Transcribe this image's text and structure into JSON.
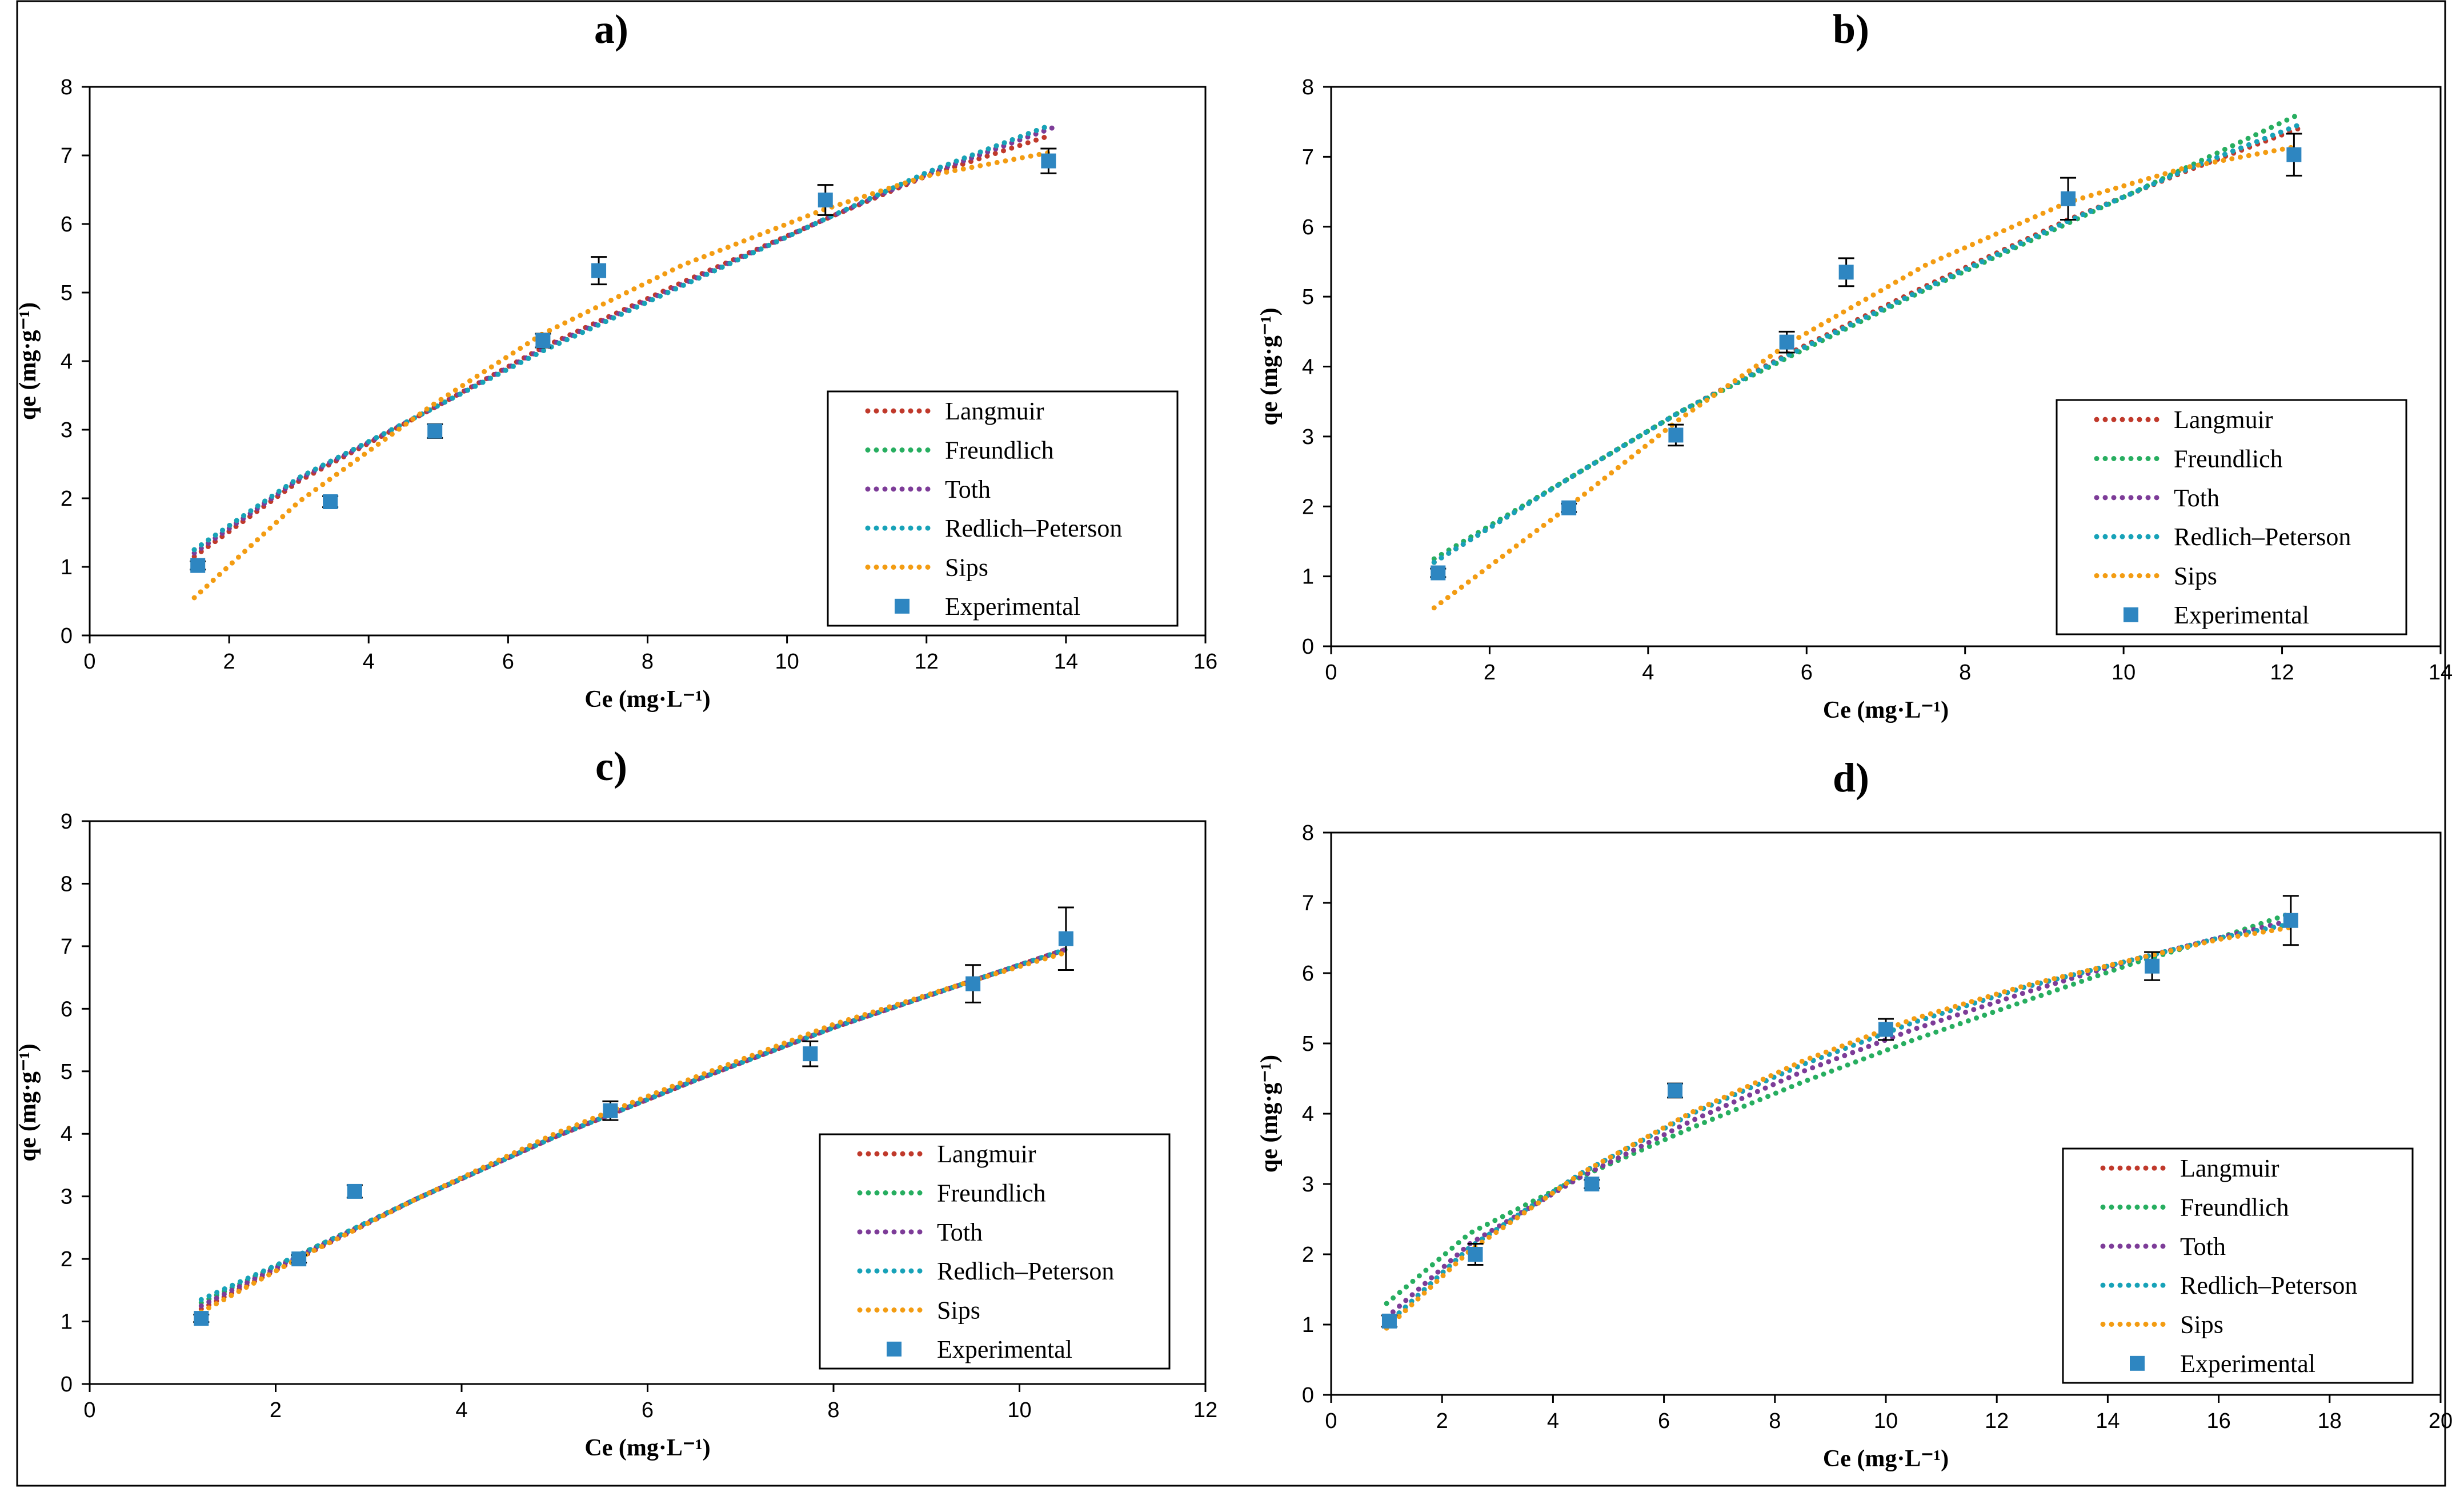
{
  "chart_data": [
    {
      "type": "scatter",
      "title": "a)",
      "xlabel": "Ce (mg·L⁻¹)",
      "ylabel": "qe (mg·g⁻¹)",
      "xlim": [
        0,
        16
      ],
      "ylim": [
        0,
        8
      ],
      "xticks": [
        0,
        2,
        4,
        6,
        8,
        10,
        12,
        14,
        16
      ],
      "yticks": [
        0,
        1,
        2,
        3,
        4,
        5,
        6,
        7,
        8
      ],
      "legend_position": "bottom-right",
      "series": [
        {
          "name": "Langmuir",
          "color": "#c0392b",
          "kind": "dotted-line",
          "x": [
            1.5,
            3.0,
            4.9,
            6.5,
            8.5,
            10.5,
            12.0,
            13.8
          ],
          "y": [
            1.15,
            2.25,
            3.3,
            4.2,
            5.15,
            6.05,
            6.7,
            7.3
          ]
        },
        {
          "name": "Freundlich",
          "color": "#27ae60",
          "kind": "dotted-line",
          "x": [
            1.5,
            3.0,
            4.9,
            6.5,
            8.5,
            10.5,
            12.0,
            13.8
          ],
          "y": [
            1.25,
            2.3,
            3.3,
            4.15,
            5.1,
            6.05,
            6.75,
            7.45
          ]
        },
        {
          "name": "Toth",
          "color": "#7d3c98",
          "kind": "dotted-line",
          "x": [
            1.5,
            3.0,
            4.9,
            6.5,
            8.5,
            10.5,
            12.0,
            13.8
          ],
          "y": [
            1.2,
            2.28,
            3.3,
            4.18,
            5.12,
            6.05,
            6.72,
            7.4
          ]
        },
        {
          "name": "Redlich–Peterson",
          "color": "#17a2b8",
          "kind": "dotted-line",
          "x": [
            1.5,
            3.0,
            4.9,
            6.5,
            8.5,
            10.5,
            12.0,
            13.8
          ],
          "y": [
            1.25,
            2.3,
            3.3,
            4.15,
            5.1,
            6.05,
            6.75,
            7.45
          ]
        },
        {
          "name": "Sips",
          "color": "#f39c12",
          "kind": "dotted-line",
          "x": [
            1.5,
            3.0,
            4.9,
            6.5,
            8.5,
            10.5,
            12.0,
            13.8
          ],
          "y": [
            0.55,
            1.95,
            3.35,
            4.4,
            5.4,
            6.2,
            6.7,
            7.05
          ]
        },
        {
          "name": "Experimental",
          "color": "#2e86c1",
          "kind": "marker",
          "x": [
            1.55,
            3.45,
            4.95,
            6.5,
            7.3,
            10.55,
            13.75
          ],
          "y": [
            1.02,
            1.95,
            2.98,
            4.3,
            5.32,
            6.35,
            6.92
          ],
          "err": [
            0.06,
            0.08,
            0.1,
            0.1,
            0.2,
            0.22,
            0.18
          ]
        }
      ]
    },
    {
      "type": "scatter",
      "title": "b)",
      "xlabel": "Ce (mg·L⁻¹)",
      "ylabel": "qe (mg·g⁻¹)",
      "xlim": [
        0,
        14
      ],
      "ylim": [
        0,
        8
      ],
      "xticks": [
        0,
        2,
        4,
        6,
        8,
        10,
        12,
        14
      ],
      "yticks": [
        0,
        1,
        2,
        3,
        4,
        5,
        6,
        7,
        8
      ],
      "legend_position": "bottom-right",
      "series": [
        {
          "name": "Langmuir",
          "color": "#c0392b",
          "kind": "dotted-line",
          "x": [
            1.3,
            3.0,
            4.4,
            5.8,
            7.5,
            9.3,
            10.8,
            12.2
          ],
          "y": [
            1.2,
            2.4,
            3.35,
            4.2,
            5.15,
            6.1,
            6.8,
            7.4
          ]
        },
        {
          "name": "Freundlich",
          "color": "#27ae60",
          "kind": "dotted-line",
          "x": [
            1.3,
            3.0,
            4.4,
            5.8,
            7.5,
            9.3,
            10.8,
            12.2
          ],
          "y": [
            1.25,
            2.4,
            3.35,
            4.15,
            5.1,
            6.05,
            6.85,
            7.6
          ]
        },
        {
          "name": "Toth",
          "color": "#7d3c98",
          "kind": "dotted-line",
          "x": [
            1.3,
            3.0,
            4.4,
            5.8,
            7.5,
            9.3,
            10.8,
            12.2
          ],
          "y": [
            1.2,
            2.4,
            3.35,
            4.18,
            5.12,
            6.08,
            6.82,
            7.45
          ]
        },
        {
          "name": "Redlich–Peterson",
          "color": "#17a2b8",
          "kind": "dotted-line",
          "x": [
            1.3,
            3.0,
            4.4,
            5.8,
            7.5,
            9.3,
            10.8,
            12.2
          ],
          "y": [
            1.2,
            2.4,
            3.35,
            4.18,
            5.12,
            6.08,
            6.82,
            7.45
          ]
        },
        {
          "name": "Sips",
          "color": "#f39c12",
          "kind": "dotted-line",
          "x": [
            1.3,
            3.0,
            4.4,
            5.8,
            7.5,
            9.3,
            10.8,
            12.2
          ],
          "y": [
            0.55,
            2.0,
            3.25,
            4.35,
            5.45,
            6.35,
            6.85,
            7.15
          ]
        },
        {
          "name": "Experimental",
          "color": "#2e86c1",
          "kind": "marker",
          "x": [
            1.35,
            3.0,
            4.35,
            5.75,
            6.5,
            9.3,
            12.15
          ],
          "y": [
            1.05,
            1.98,
            3.02,
            4.35,
            5.35,
            6.4,
            7.03
          ],
          "err": [
            0.06,
            0.06,
            0.15,
            0.15,
            0.2,
            0.3,
            0.3
          ]
        }
      ]
    },
    {
      "type": "scatter",
      "title": "c)",
      "xlabel": "Ce (mg·L⁻¹)",
      "ylabel": "qe (mg·g⁻¹)",
      "xlim": [
        0,
        12
      ],
      "ylim": [
        0,
        9
      ],
      "xticks": [
        0,
        2,
        4,
        6,
        8,
        10,
        12
      ],
      "yticks": [
        0,
        1,
        2,
        3,
        4,
        5,
        6,
        7,
        8,
        9
      ],
      "legend_position": "bottom-right",
      "series": [
        {
          "name": "Langmuir",
          "color": "#c0392b",
          "kind": "dotted-line",
          "x": [
            1.2,
            2.3,
            3.5,
            5.0,
            6.5,
            8.0,
            9.5,
            10.5
          ],
          "y": [
            1.2,
            2.05,
            2.95,
            3.95,
            4.85,
            5.7,
            6.45,
            6.95
          ]
        },
        {
          "name": "Freundlich",
          "color": "#27ae60",
          "kind": "dotted-line",
          "x": [
            1.2,
            2.3,
            3.5,
            5.0,
            6.5,
            8.0,
            9.5,
            10.5
          ],
          "y": [
            1.3,
            2.1,
            2.95,
            3.95,
            4.85,
            5.7,
            6.45,
            6.95
          ]
        },
        {
          "name": "Toth",
          "color": "#7d3c98",
          "kind": "dotted-line",
          "x": [
            1.2,
            2.3,
            3.5,
            5.0,
            6.5,
            8.0,
            9.5,
            10.5
          ],
          "y": [
            1.25,
            2.08,
            2.95,
            3.95,
            4.85,
            5.7,
            6.45,
            6.95
          ]
        },
        {
          "name": "Redlich–Peterson",
          "color": "#17a2b8",
          "kind": "dotted-line",
          "x": [
            1.2,
            2.3,
            3.5,
            5.0,
            6.5,
            8.0,
            9.5,
            10.5
          ],
          "y": [
            1.35,
            2.1,
            2.95,
            3.95,
            4.85,
            5.7,
            6.45,
            6.95
          ]
        },
        {
          "name": "Sips",
          "color": "#f39c12",
          "kind": "dotted-line",
          "x": [
            1.2,
            2.3,
            3.5,
            5.0,
            6.5,
            8.0,
            9.5,
            10.5
          ],
          "y": [
            1.15,
            2.05,
            2.95,
            4.0,
            4.9,
            5.75,
            6.45,
            6.9
          ]
        },
        {
          "name": "Experimental",
          "color": "#2e86c1",
          "kind": "marker",
          "x": [
            1.2,
            2.25,
            2.85,
            5.6,
            7.75,
            9.5,
            10.5
          ],
          "y": [
            1.05,
            2.0,
            3.08,
            4.37,
            5.28,
            6.4,
            7.12
          ],
          "err": [
            0.06,
            0.06,
            0.1,
            0.15,
            0.2,
            0.3,
            0.5
          ]
        }
      ]
    },
    {
      "type": "scatter",
      "title": "d)",
      "xlabel": "Ce (mg·L⁻¹)",
      "ylabel": "qe (mg·g⁻¹)",
      "xlim": [
        0,
        20
      ],
      "ylim": [
        0,
        8
      ],
      "xticks": [
        0,
        2,
        4,
        6,
        8,
        10,
        12,
        14,
        16,
        18,
        20
      ],
      "yticks": [
        0,
        1,
        2,
        3,
        4,
        5,
        6,
        7,
        8
      ],
      "legend_position": "bottom-right",
      "series": [
        {
          "name": "Langmuir",
          "color": "#c0392b",
          "kind": "dotted-line",
          "x": [
            1.0,
            2.5,
            4.5,
            6.5,
            8.5,
            10.5,
            12.5,
            14.5,
            16.0,
            17.3
          ],
          "y": [
            1.0,
            2.1,
            3.15,
            4.0,
            4.7,
            5.3,
            5.8,
            6.2,
            6.5,
            6.7
          ]
        },
        {
          "name": "Freundlich",
          "color": "#27ae60",
          "kind": "dotted-line",
          "x": [
            1.0,
            2.5,
            4.5,
            6.5,
            8.5,
            10.5,
            12.5,
            14.5,
            16.0,
            17.3
          ],
          "y": [
            1.3,
            2.3,
            3.1,
            3.8,
            4.45,
            5.05,
            5.6,
            6.15,
            6.5,
            6.85
          ]
        },
        {
          "name": "Toth",
          "color": "#7d3c98",
          "kind": "dotted-line",
          "x": [
            1.0,
            2.5,
            4.5,
            6.5,
            8.5,
            10.5,
            12.5,
            14.5,
            16.0,
            17.3
          ],
          "y": [
            1.1,
            2.15,
            3.1,
            3.9,
            4.6,
            5.2,
            5.72,
            6.2,
            6.5,
            6.75
          ]
        },
        {
          "name": "Redlich–Peterson",
          "color": "#17a2b8",
          "kind": "dotted-line",
          "x": [
            1.0,
            2.5,
            4.5,
            6.5,
            8.5,
            10.5,
            12.5,
            14.5,
            16.0,
            17.3
          ],
          "y": [
            1.0,
            2.1,
            3.15,
            4.0,
            4.7,
            5.3,
            5.8,
            6.2,
            6.5,
            6.7
          ]
        },
        {
          "name": "Sips",
          "color": "#f39c12",
          "kind": "dotted-line",
          "x": [
            1.0,
            2.5,
            4.5,
            6.5,
            8.5,
            10.5,
            12.5,
            14.5,
            16.0,
            17.3
          ],
          "y": [
            0.95,
            2.05,
            3.15,
            4.02,
            4.75,
            5.35,
            5.82,
            6.2,
            6.48,
            6.65
          ]
        },
        {
          "name": "Experimental",
          "color": "#2e86c1",
          "kind": "marker",
          "x": [
            1.05,
            2.6,
            4.7,
            6.2,
            10.0,
            14.8,
            17.3
          ],
          "y": [
            1.05,
            2.0,
            3.0,
            4.33,
            5.2,
            6.1,
            6.75
          ],
          "err": [
            0.08,
            0.15,
            0.06,
            0.1,
            0.15,
            0.2,
            0.35
          ]
        }
      ]
    }
  ]
}
